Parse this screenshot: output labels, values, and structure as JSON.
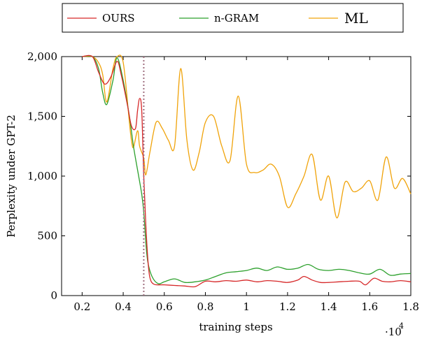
{
  "chart_data": {
    "type": "line",
    "title": "",
    "xlabel": "training steps",
    "ylabel": "Perplexity under GPT-2",
    "x_scale_label": "·10",
    "x_scale_exponent": "4",
    "xlim": [
      0.1,
      1.8
    ],
    "ylim": [
      0,
      2000
    ],
    "x_ticks": [
      "0.2",
      "0.4",
      "0.6",
      "0.8",
      "1",
      "1.2",
      "1.4",
      "1.6",
      "1.8"
    ],
    "y_ticks": [
      "0",
      "500",
      "1,000",
      "1,500",
      "2,000"
    ],
    "grid": false,
    "legend_position": "top-center",
    "vertical_marker": {
      "x": 0.5,
      "style": "dotted",
      "color": "#a07080"
    },
    "series": [
      {
        "name": "OURS",
        "color": "#d62728",
        "x": [
          0.2,
          0.25,
          0.28,
          0.31,
          0.34,
          0.37,
          0.39,
          0.42,
          0.44,
          0.46,
          0.47,
          0.48,
          0.49,
          0.5,
          0.51,
          0.52,
          0.53,
          0.55,
          0.6,
          0.65,
          0.7,
          0.75,
          0.8,
          0.85,
          0.9,
          0.95,
          1.0,
          1.05,
          1.1,
          1.15,
          1.2,
          1.25,
          1.28,
          1.32,
          1.36,
          1.4,
          1.45,
          1.5,
          1.55,
          1.58,
          1.62,
          1.66,
          1.7,
          1.75,
          1.8
        ],
        "values": [
          2000,
          2000,
          1870,
          1770,
          1830,
          1960,
          1850,
          1600,
          1420,
          1400,
          1550,
          1650,
          1550,
          1000,
          600,
          300,
          150,
          95,
          90,
          85,
          80,
          75,
          120,
          115,
          125,
          120,
          130,
          115,
          125,
          120,
          110,
          130,
          160,
          130,
          110,
          110,
          115,
          120,
          120,
          90,
          145,
          120,
          115,
          125,
          115
        ]
      },
      {
        "name": "n-GRAM",
        "color": "#2ca02c",
        "x": [
          0.2,
          0.25,
          0.28,
          0.3,
          0.32,
          0.35,
          0.37,
          0.4,
          0.43,
          0.45,
          0.47,
          0.49,
          0.5,
          0.51,
          0.52,
          0.54,
          0.57,
          0.6,
          0.65,
          0.7,
          0.75,
          0.8,
          0.85,
          0.9,
          0.95,
          1.0,
          1.05,
          1.1,
          1.15,
          1.2,
          1.25,
          1.3,
          1.35,
          1.4,
          1.45,
          1.5,
          1.55,
          1.6,
          1.65,
          1.7,
          1.75,
          1.8
        ],
        "values": [
          2000,
          2000,
          1900,
          1700,
          1600,
          1800,
          1990,
          1800,
          1500,
          1250,
          1050,
          850,
          700,
          450,
          280,
          160,
          100,
          115,
          140,
          110,
          115,
          130,
          160,
          190,
          200,
          210,
          230,
          210,
          240,
          220,
          230,
          260,
          220,
          210,
          220,
          210,
          190,
          180,
          220,
          170,
          180,
          185
        ]
      },
      {
        "name": "ML",
        "color": "#f0a30a",
        "x": [
          0.2,
          0.25,
          0.28,
          0.3,
          0.32,
          0.35,
          0.37,
          0.4,
          0.43,
          0.44,
          0.45,
          0.47,
          0.48,
          0.5,
          0.51,
          0.53,
          0.56,
          0.59,
          0.62,
          0.65,
          0.68,
          0.71,
          0.74,
          0.77,
          0.8,
          0.84,
          0.88,
          0.92,
          0.96,
          1.0,
          1.04,
          1.08,
          1.12,
          1.16,
          1.2,
          1.24,
          1.28,
          1.32,
          1.36,
          1.4,
          1.44,
          1.48,
          1.52,
          1.56,
          1.6,
          1.64,
          1.68,
          1.72,
          1.76,
          1.8
        ],
        "values": [
          2000,
          2000,
          1950,
          1850,
          1620,
          1900,
          2000,
          1950,
          1450,
          1300,
          1240,
          1380,
          1250,
          1150,
          1010,
          1200,
          1450,
          1400,
          1300,
          1250,
          1900,
          1300,
          1050,
          1200,
          1450,
          1500,
          1250,
          1130,
          1670,
          1100,
          1030,
          1050,
          1100,
          1000,
          740,
          850,
          1000,
          1180,
          800,
          1000,
          650,
          950,
          870,
          900,
          960,
          800,
          1160,
          900,
          980,
          850
        ]
      }
    ]
  }
}
